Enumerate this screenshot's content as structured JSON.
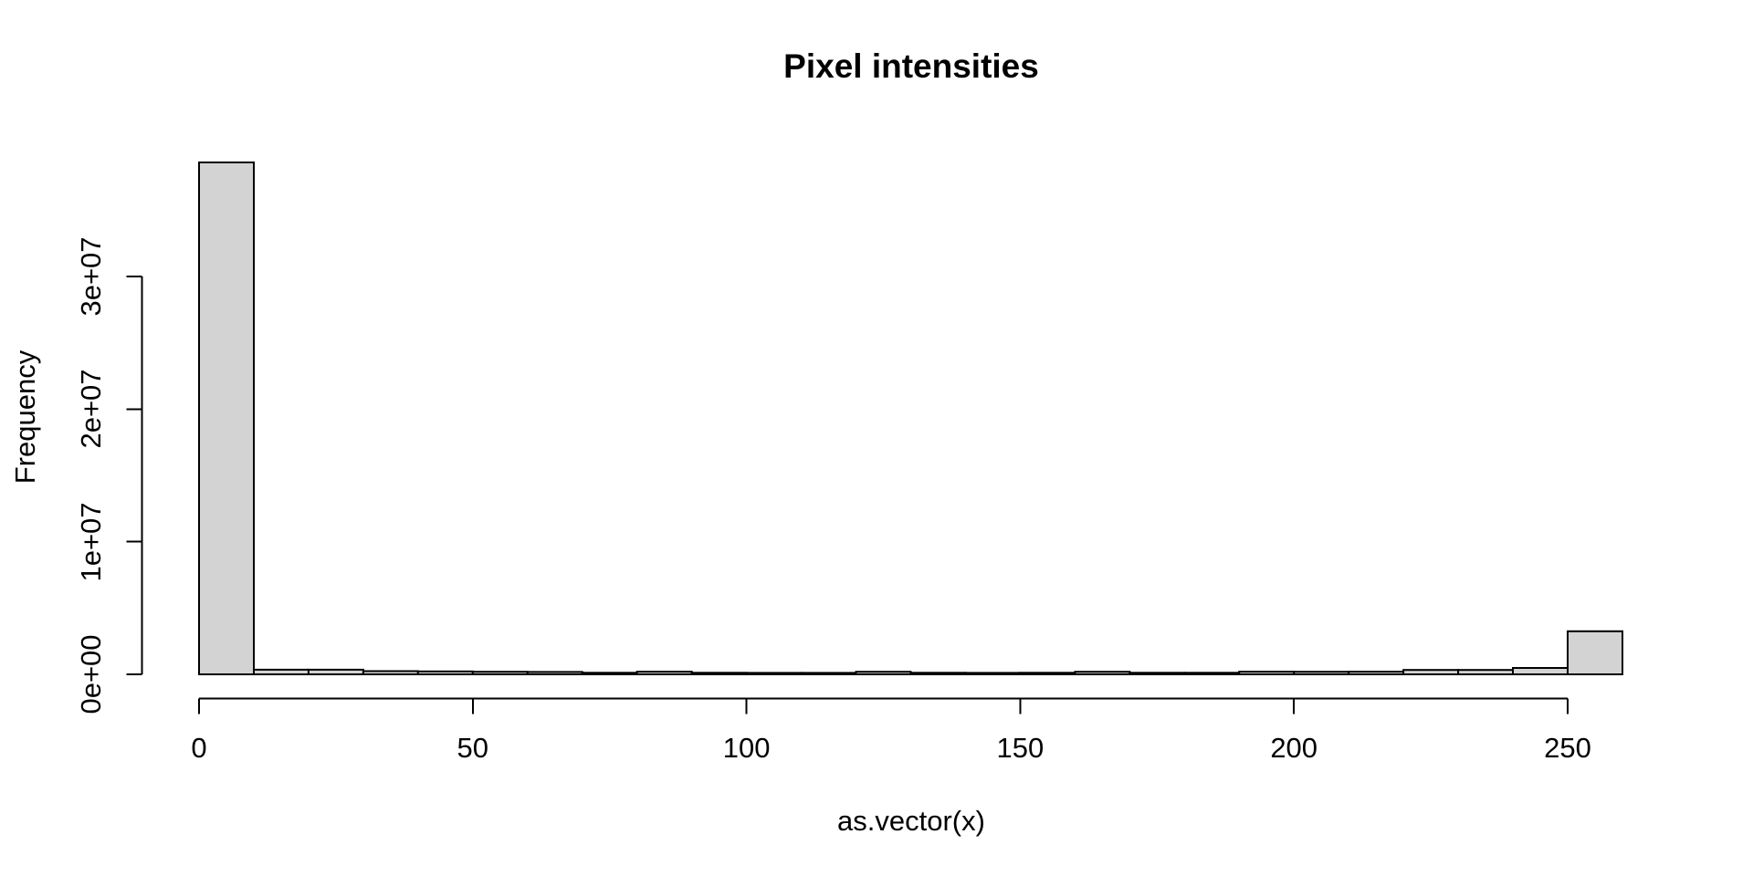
{
  "figure": {
    "background": "#ffffff",
    "text_color": "#000000"
  },
  "chart_data": {
    "type": "bar",
    "subtype": "histogram",
    "title": "Pixel intensities",
    "xlabel": "as.vector(x)",
    "ylabel": "Frequency",
    "grid": false,
    "legend": "none",
    "bar_fill": "#d3d3d3",
    "bar_stroke": "#000000",
    "axis_color": "#000000",
    "bin_start": 0,
    "bin_width": 10,
    "bin_edges": [
      0,
      10,
      20,
      30,
      40,
      50,
      60,
      70,
      80,
      90,
      100,
      110,
      120,
      130,
      140,
      150,
      160,
      170,
      180,
      190,
      200,
      210,
      220,
      230,
      240,
      250,
      260
    ],
    "values": [
      38600000,
      350000,
      350000,
      240000,
      220000,
      190000,
      180000,
      120000,
      200000,
      120000,
      110000,
      110000,
      190000,
      120000,
      110000,
      120000,
      190000,
      120000,
      120000,
      200000,
      190000,
      200000,
      330000,
      330000,
      480000,
      3250000
    ],
    "xlim": [
      0,
      260
    ],
    "ylim": [
      0,
      38600000
    ],
    "x_ticks": [
      {
        "value": 0,
        "label": "0"
      },
      {
        "value": 50,
        "label": "50"
      },
      {
        "value": 100,
        "label": "100"
      },
      {
        "value": 150,
        "label": "150"
      },
      {
        "value": 200,
        "label": "200"
      },
      {
        "value": 250,
        "label": "250"
      }
    ],
    "y_ticks": [
      {
        "value": 0,
        "label": "0e+00"
      },
      {
        "value": 10000000,
        "label": "1e+07"
      },
      {
        "value": 20000000,
        "label": "2e+07"
      },
      {
        "value": 30000000,
        "label": "3e+07"
      }
    ]
  }
}
